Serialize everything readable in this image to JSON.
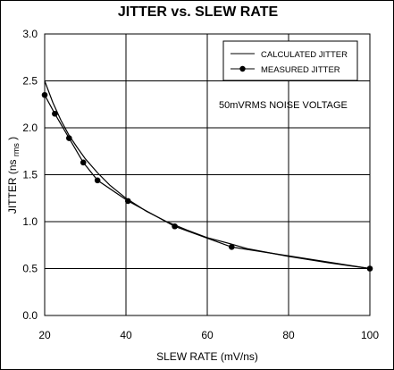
{
  "chart_data": {
    "type": "line",
    "title": "JITTER vs. SLEW RATE",
    "xlabel": "SLEW RATE (mV/ns)",
    "ylabel_main": "JITTER (ns",
    "ylabel_sub": "rms",
    "ylabel_close": ")",
    "xlim": [
      20,
      100
    ],
    "ylim": [
      0.0,
      3.0
    ],
    "xticks": [
      20,
      40,
      60,
      80,
      100
    ],
    "xtick_labels": [
      "20",
      "40",
      "60",
      "80",
      "100"
    ],
    "yticks": [
      0,
      0.5,
      1.0,
      1.5,
      2.0,
      2.5,
      3.0
    ],
    "ytick_labels": [
      "0.0",
      "0.5",
      "1.0",
      "1.5",
      "2.0",
      "2.5",
      "3.0"
    ],
    "grid": true,
    "legend_position": "top-right",
    "annotation": "50mVRMS NOISE VOLTAGE",
    "series": [
      {
        "name": "CALCULATED JITTER",
        "marker": "none",
        "x": [
          20,
          22,
          24,
          26,
          28,
          30,
          33,
          36,
          40,
          45,
          50,
          55,
          60,
          66,
          70,
          80,
          90,
          100
        ],
        "y": [
          2.5,
          2.27,
          2.08,
          1.92,
          1.79,
          1.67,
          1.52,
          1.39,
          1.25,
          1.11,
          1.0,
          0.91,
          0.83,
          0.76,
          0.71,
          0.63,
          0.56,
          0.5
        ]
      },
      {
        "name": "MEASURED JITTER",
        "marker": "circle",
        "x": [
          20,
          22.5,
          26,
          29.5,
          33,
          40.5,
          52,
          66,
          100
        ],
        "y": [
          2.35,
          2.15,
          1.89,
          1.63,
          1.44,
          1.22,
          0.95,
          0.73,
          0.5
        ]
      }
    ]
  }
}
